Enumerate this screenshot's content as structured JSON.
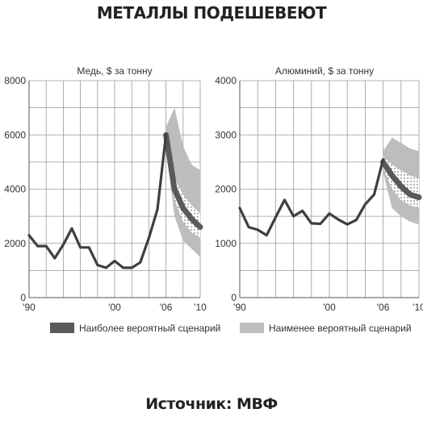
{
  "title": "МЕТАЛЛЫ ПОДЕШЕВЕЮТ",
  "source": "Источник: МВФ",
  "colors": {
    "line": "#3f3f3f",
    "most_likely": "#5a5a5a",
    "least_likely": "#bdbdbd",
    "grid": "#9a9a9a",
    "dots": "#ffffff"
  },
  "legend": [
    {
      "label": "Наиболее вероятный сценарий",
      "color": "#5a5a5a"
    },
    {
      "label": "Наименее вероятный сценарий",
      "color": "#bdbdbd"
    }
  ],
  "chart_data": [
    {
      "type": "line",
      "title": "Медь, $ за тонну",
      "ylim": [
        0,
        8000
      ],
      "yticks": [
        "0",
        "2000",
        "4000",
        "6000",
        "8000"
      ],
      "xlim": [
        1990,
        2010
      ],
      "xtick_labels": [
        {
          "x": 1990,
          "label": "'90"
        },
        {
          "x": 2000,
          "label": "'00"
        },
        {
          "x": 2006,
          "label": "'06"
        },
        {
          "x": 2010,
          "label": "'10"
        }
      ],
      "grid": true,
      "series": [
        {
          "x": [
            1990,
            1991,
            1992,
            1993,
            1994,
            1995,
            1996,
            1997,
            1998,
            1999,
            2000,
            2001,
            2002,
            2003,
            2004,
            2005,
            2006
          ],
          "y": [
            2300,
            1900,
            1900,
            1450,
            1950,
            2550,
            1850,
            1850,
            1200,
            1100,
            1350,
            1100,
            1100,
            1300,
            2200,
            3250,
            6000
          ]
        }
      ],
      "forecast": {
        "x": [
          2006,
          2007,
          2008,
          2009,
          2010
        ],
        "center": [
          6000,
          4000,
          3300,
          2900,
          2600
        ],
        "likely_low": [
          5800,
          3600,
          2800,
          2400,
          2200
        ],
        "likely_high": [
          6100,
          4400,
          3800,
          3400,
          3100
        ],
        "unlikely_low": [
          5500,
          3000,
          2100,
          1800,
          1500
        ],
        "unlikely_high": [
          6300,
          7000,
          5600,
          4900,
          4700
        ]
      }
    },
    {
      "type": "line",
      "title": "Алюминий, $ за тонну",
      "ylim": [
        0,
        4000
      ],
      "yticks": [
        "0",
        "1000",
        "2000",
        "3000",
        "4000"
      ],
      "xlim": [
        1990,
        2010
      ],
      "xtick_labels": [
        {
          "x": 1990,
          "label": "'90"
        },
        {
          "x": 2000,
          "label": "'00"
        },
        {
          "x": 2006,
          "label": "'06"
        },
        {
          "x": 2010,
          "label": "'10"
        }
      ],
      "grid": true,
      "series": [
        {
          "x": [
            1990,
            1991,
            1992,
            1993,
            1994,
            1995,
            1996,
            1997,
            1998,
            1999,
            2000,
            2001,
            2002,
            2003,
            2004,
            2005,
            2006
          ],
          "y": [
            1650,
            1300,
            1250,
            1150,
            1480,
            1800,
            1500,
            1600,
            1370,
            1360,
            1550,
            1440,
            1350,
            1430,
            1720,
            1900,
            2550
          ]
        }
      ],
      "forecast": {
        "x": [
          2006,
          2007,
          2008,
          2009,
          2010
        ],
        "center": [
          2500,
          2250,
          2050,
          1900,
          1850
        ],
        "likely_low": [
          2400,
          2000,
          1800,
          1700,
          1650
        ],
        "likely_high": [
          2600,
          2450,
          2350,
          2250,
          2200
        ],
        "unlikely_low": [
          2300,
          1650,
          1500,
          1400,
          1350
        ],
        "unlikely_high": [
          2700,
          2950,
          2850,
          2750,
          2700
        ]
      }
    }
  ]
}
